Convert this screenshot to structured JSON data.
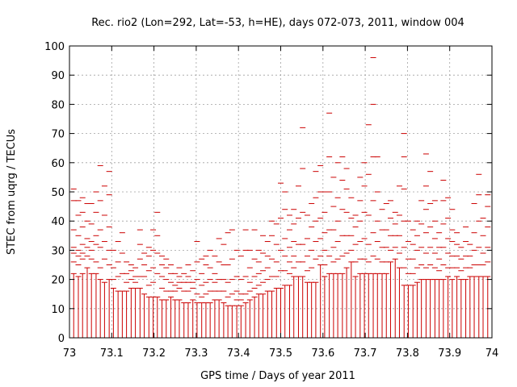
{
  "chart_data": {
    "type": "scatter",
    "style": "errorbars",
    "title": "Rec. rio2 (Lon=292, Lat=-53, h=HE), days 072-073, 2011, window 004",
    "xlabel": "GPS time / Days of year 2011",
    "ylabel": "STEC from uqrg / TECUs",
    "xlim": [
      73,
      74
    ],
    "ylim": [
      0,
      100
    ],
    "xticks": [
      "73",
      "73.1",
      "73.2",
      "73.3",
      "73.4",
      "73.5",
      "73.6",
      "73.7",
      "73.8",
      "73.9",
      "74"
    ],
    "yticks": [
      "0",
      "10",
      "20",
      "30",
      "40",
      "50",
      "60",
      "70",
      "80",
      "90",
      "100"
    ],
    "grid": true,
    "color": "#cc0000",
    "series": [
      {
        "points": [
          {
            "x": 73.01,
            "vals": [
              22,
              26,
              29,
              31,
              37,
              47,
              51
            ]
          },
          {
            "x": 73.021,
            "vals": [
              21,
              25,
              28,
              30,
              35,
              42,
              47
            ]
          },
          {
            "x": 73.031,
            "vals": [
              22,
              27,
              29,
              32,
              38,
              43,
              48
            ]
          },
          {
            "x": 73.042,
            "vals": [
              24,
              28,
              31,
              34,
              40,
              46
            ]
          },
          {
            "x": 73.052,
            "vals": [
              22,
              27,
              30,
              33,
              39,
              46
            ]
          },
          {
            "x": 73.063,
            "vals": [
              22,
              26,
              32,
              35,
              43,
              50
            ]
          },
          {
            "x": 73.073,
            "vals": [
              20,
              24,
              31,
              37,
              47,
              59
            ]
          },
          {
            "x": 73.083,
            "vals": [
              19,
              27,
              33,
              42,
              52
            ]
          },
          {
            "x": 73.094,
            "vals": [
              20,
              25,
              30,
              38,
              49,
              57
            ]
          },
          {
            "x": 73.104,
            "vals": [
              17,
              20,
              24,
              30
            ]
          },
          {
            "x": 73.115,
            "vals": [
              16,
              21,
              26,
              33
            ]
          },
          {
            "x": 73.125,
            "vals": [
              16,
              22,
              29,
              36
            ]
          },
          {
            "x": 73.135,
            "vals": [
              16,
              19,
              22,
              26
            ]
          },
          {
            "x": 73.146,
            "vals": [
              17,
              20,
              23,
              25
            ]
          },
          {
            "x": 73.156,
            "vals": [
              17,
              19,
              21,
              24
            ]
          },
          {
            "x": 73.167,
            "vals": [
              17,
              21,
              27,
              32,
              37
            ]
          },
          {
            "x": 73.177,
            "vals": [
              15,
              21,
              25,
              29
            ]
          },
          {
            "x": 73.188,
            "vals": [
              14,
              18,
              23,
              28,
              31
            ]
          },
          {
            "x": 73.198,
            "vals": [
              14,
              19,
              24,
              30,
              37
            ]
          },
          {
            "x": 73.208,
            "vals": [
              14,
              22,
              29,
              35,
              43
            ]
          },
          {
            "x": 73.219,
            "vals": [
              13,
              17,
              21,
              25,
              28
            ]
          },
          {
            "x": 73.229,
            "vals": [
              13,
              16,
              20,
              24,
              27
            ]
          },
          {
            "x": 73.24,
            "vals": [
              14,
              16,
              19,
              22,
              25
            ]
          },
          {
            "x": 73.25,
            "vals": [
              13,
              16,
              18,
              22
            ]
          },
          {
            "x": 73.26,
            "vals": [
              13,
              17,
              19,
              21,
              24
            ]
          },
          {
            "x": 73.271,
            "vals": [
              12,
              16,
              19,
              22
            ]
          },
          {
            "x": 73.281,
            "vals": [
              12,
              16,
              19,
              21,
              25
            ]
          },
          {
            "x": 73.292,
            "vals": [
              13,
              17,
              19,
              23
            ]
          },
          {
            "x": 73.302,
            "vals": [
              12,
              15,
              20,
              26,
              33
            ]
          },
          {
            "x": 73.313,
            "vals": [
              12,
              14,
              18,
              22,
              27
            ]
          },
          {
            "x": 73.323,
            "vals": [
              12,
              15,
              19,
              25,
              28
            ]
          },
          {
            "x": 73.333,
            "vals": [
              12,
              16,
              20,
              24,
              30
            ]
          },
          {
            "x": 73.344,
            "vals": [
              13,
              16,
              19,
              22,
              28
            ]
          },
          {
            "x": 73.354,
            "vals": [
              13,
              16,
              20,
              26,
              34
            ]
          },
          {
            "x": 73.365,
            "vals": [
              12,
              16,
              20,
              25,
              32
            ]
          },
          {
            "x": 73.375,
            "vals": [
              11,
              14,
              19,
              25,
              36
            ]
          },
          {
            "x": 73.385,
            "vals": [
              11,
              15,
              20,
              27,
              37
            ]
          },
          {
            "x": 73.396,
            "vals": [
              11,
              13,
              16,
              21,
              30
            ]
          },
          {
            "x": 73.406,
            "vals": [
              11,
              13,
              15,
              20,
              28
            ]
          },
          {
            "x": 73.417,
            "vals": [
              12,
              15,
              21,
              30,
              37
            ]
          },
          {
            "x": 73.427,
            "vals": [
              13,
              16,
              19,
              24,
              30
            ]
          },
          {
            "x": 73.438,
            "vals": [
              14,
              17,
              21,
              27,
              37
            ]
          },
          {
            "x": 73.448,
            "vals": [
              15,
              18,
              22,
              26,
              30
            ]
          },
          {
            "x": 73.458,
            "vals": [
              15,
              19,
              23,
              29,
              35
            ]
          },
          {
            "x": 73.469,
            "vals": [
              16,
              20,
              24,
              28,
              33
            ]
          },
          {
            "x": 73.479,
            "vals": [
              16,
              21,
              27,
              35,
              40
            ]
          },
          {
            "x": 73.49,
            "vals": [
              17,
              21,
              26,
              32,
              39
            ]
          },
          {
            "x": 73.5,
            "vals": [
              17,
              23,
              30,
              41,
              53
            ]
          },
          {
            "x": 73.51,
            "vals": [
              18,
              23,
              28,
              34,
              44,
              50
            ]
          },
          {
            "x": 73.521,
            "vals": [
              18,
              22,
              26,
              31,
              37,
              42
            ]
          },
          {
            "x": 73.531,
            "vals": [
              21,
              24,
              28,
              33,
              39,
              44
            ]
          },
          {
            "x": 73.542,
            "vals": [
              21,
              26,
              32,
              41,
              52
            ]
          },
          {
            "x": 73.552,
            "vals": [
              21,
              26,
              32,
              43,
              58,
              72
            ]
          },
          {
            "x": 73.563,
            "vals": [
              19,
              23,
              28,
              34,
              42
            ]
          },
          {
            "x": 73.573,
            "vals": [
              19,
              24,
              30,
              38,
              46
            ]
          },
          {
            "x": 73.583,
            "vals": [
              19,
              27,
              33,
              40,
              48,
              57
            ]
          },
          {
            "x": 73.594,
            "vals": [
              25,
              28,
              34,
              41,
              50,
              59
            ]
          },
          {
            "x": 73.604,
            "vals": [
              21,
              25,
              30,
              36,
              43,
              50
            ]
          },
          {
            "x": 73.615,
            "vals": [
              22,
              28,
              37,
              50,
              62,
              77
            ]
          },
          {
            "x": 73.625,
            "vals": [
              22,
              26,
              31,
              37,
              45,
              55
            ]
          },
          {
            "x": 73.635,
            "vals": [
              22,
              27,
              33,
              40,
              48,
              60
            ]
          },
          {
            "x": 73.646,
            "vals": [
              22,
              28,
              35,
              44,
              54,
              62
            ]
          },
          {
            "x": 73.656,
            "vals": [
              24,
              29,
              35,
              43,
              51,
              58
            ]
          },
          {
            "x": 73.667,
            "vals": [
              26,
              30,
              35,
              41,
              48
            ]
          },
          {
            "x": 73.677,
            "vals": [
              21,
              26,
              32,
              38,
              42
            ]
          },
          {
            "x": 73.688,
            "vals": [
              22,
              27,
              33,
              40,
              47,
              55
            ]
          },
          {
            "x": 73.698,
            "vals": [
              22,
              27,
              34,
              43,
              52,
              60
            ]
          },
          {
            "x": 73.708,
            "vals": [
              22,
              26,
              32,
              42,
              56,
              73
            ]
          },
          {
            "x": 73.719,
            "vals": [
              22,
              28,
              36,
              47,
              62,
              80,
              96
            ]
          },
          {
            "x": 73.729,
            "vals": [
              22,
              27,
              33,
              40,
              50,
              62
            ]
          },
          {
            "x": 73.74,
            "vals": [
              22,
              26,
              31,
              37,
              44
            ]
          },
          {
            "x": 73.75,
            "vals": [
              22,
              26,
              31,
              37,
              46
            ]
          },
          {
            "x": 73.76,
            "vals": [
              26,
              30,
              35,
              41,
              47
            ]
          },
          {
            "x": 73.771,
            "vals": [
              27,
              31,
              35,
              39,
              43
            ]
          },
          {
            "x": 73.781,
            "vals": [
              24,
              29,
              35,
              42,
              52
            ]
          },
          {
            "x": 73.792,
            "vals": [
              18,
              24,
              31,
              40,
              51,
              62,
              70
            ]
          },
          {
            "x": 73.802,
            "vals": [
              18,
              22,
              27,
              33,
              40
            ]
          },
          {
            "x": 73.813,
            "vals": [
              18,
              22,
              27,
              32,
              37
            ]
          },
          {
            "x": 73.823,
            "vals": [
              19,
              24,
              30,
              35,
              40
            ]
          },
          {
            "x": 73.833,
            "vals": [
              20,
              25,
              31,
              39,
              47
            ]
          },
          {
            "x": 73.844,
            "vals": [
              20,
              24,
              29,
              36,
              44,
              52,
              63
            ]
          },
          {
            "x": 73.854,
            "vals": [
              20,
              25,
              31,
              38,
              46,
              57
            ]
          },
          {
            "x": 73.865,
            "vals": [
              20,
              24,
              29,
              34,
              40,
              47
            ]
          },
          {
            "x": 73.875,
            "vals": [
              20,
              23,
              27,
              31,
              36
            ]
          },
          {
            "x": 73.885,
            "vals": [
              20,
              25,
              31,
              39,
              47,
              54
            ]
          },
          {
            "x": 73.896,
            "vals": [
              21,
              24,
              29,
              34,
              41,
              48
            ]
          },
          {
            "x": 73.906,
            "vals": [
              20,
              24,
              28,
              33,
              37,
              44
            ]
          },
          {
            "x": 73.917,
            "vals": [
              21,
              24,
              28,
              32,
              36
            ]
          },
          {
            "x": 73.927,
            "vals": [
              20,
              23,
              27,
              31
            ]
          },
          {
            "x": 73.938,
            "vals": [
              20,
              24,
              28,
              33,
              38
            ]
          },
          {
            "x": 73.948,
            "vals": [
              21,
              24,
              28,
              32
            ]
          },
          {
            "x": 73.958,
            "vals": [
              21,
              25,
              30,
              36,
              46
            ]
          },
          {
            "x": 73.969,
            "vals": [
              21,
              25,
              31,
              40,
              49,
              56
            ]
          },
          {
            "x": 73.979,
            "vals": [
              21,
              25,
              29,
              35,
              41
            ]
          },
          {
            "x": 73.99,
            "vals": [
              21,
              26,
              31,
              38,
              45,
              49
            ]
          }
        ]
      }
    ]
  }
}
